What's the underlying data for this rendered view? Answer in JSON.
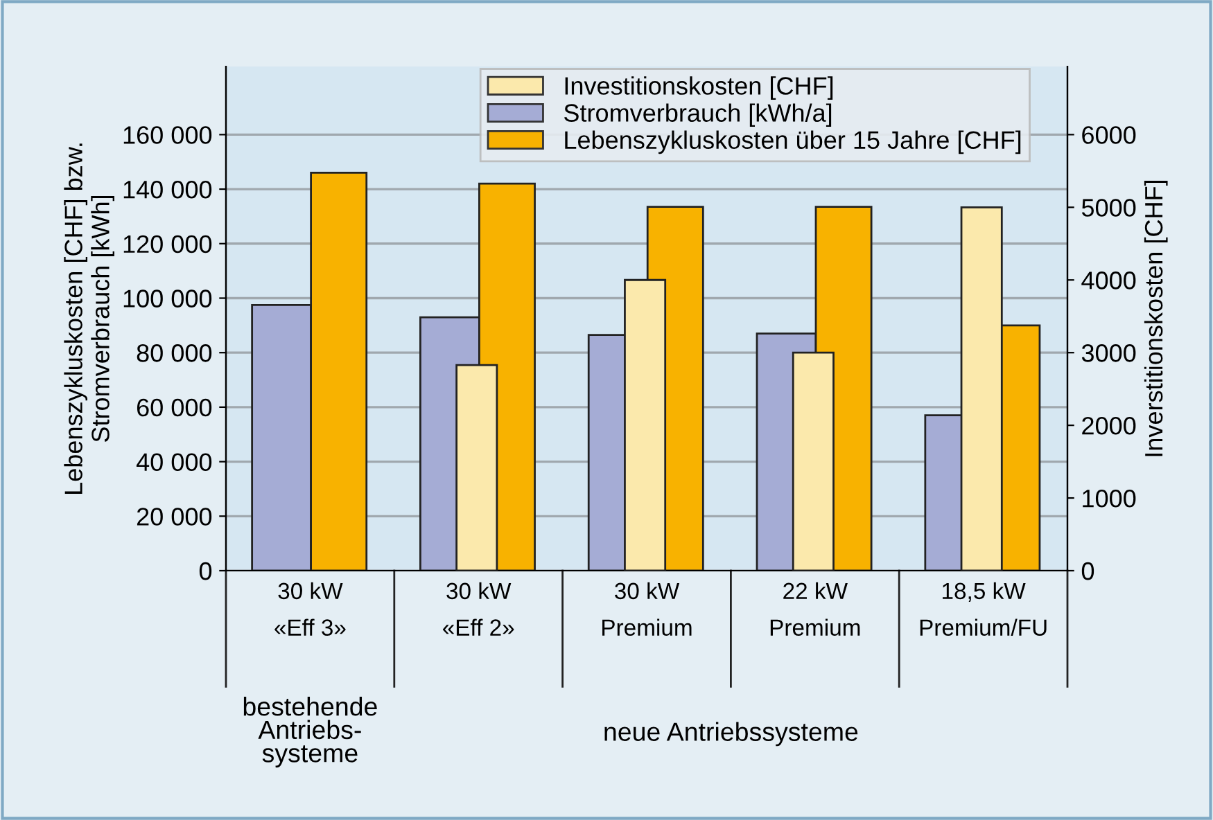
{
  "chart_data": {
    "type": "bar",
    "categories": [
      "30 kW\n«Eff 3»",
      "30 kW\n«Eff 2»",
      "30 kW\nPremium",
      "22 kW\nPremium",
      "18,5 kW\nPremium/FU"
    ],
    "ylabel": "Lebenszykluskosten [CHF] bzw.\nStromverbrauch [kWh]",
    "y2label": "Inverstitionskosten [CHF]",
    "series": [
      {
        "name": "Investitionskosten [CHF]",
        "color": "#fbe9ac",
        "axis": "y2",
        "values": [
          null,
          2830,
          4000,
          3000,
          5000
        ]
      },
      {
        "name": "Stromverbrauch [kWh/a]",
        "color": "#a5acd5",
        "values": [
          97500,
          93000,
          86500,
          87000,
          57000
        ]
      },
      {
        "name": "Lebenszykluskosten über 15 Jahre [CHF]",
        "color": "#f8b200",
        "values": [
          146000,
          142000,
          133500,
          133500,
          90000
        ]
      }
    ],
    "ylim": [
      0,
      185000
    ],
    "yticks": [
      0,
      {
        "value": 20000,
        "label": "20 000"
      },
      {
        "value": 40000,
        "label": "40 000"
      },
      {
        "value": 60000,
        "label": "60 000"
      },
      {
        "value": 80000,
        "label": "80 000"
      },
      {
        "value": 100000,
        "label": "100 000"
      },
      {
        "value": 120000,
        "label": "120 000"
      },
      {
        "value": 140000,
        "label": "140 000"
      },
      {
        "value": 160000,
        "label": "160 000"
      }
    ],
    "y2lim": [
      0,
      6937.5
    ],
    "y2ticks": [
      0,
      1000,
      2000,
      3000,
      4000,
      5000,
      6000
    ],
    "grid": "y",
    "legend": "top right",
    "annotations": [
      "bestehende\nAntriebs-\nsysteme",
      "neue Antriebssysteme"
    ]
  }
}
